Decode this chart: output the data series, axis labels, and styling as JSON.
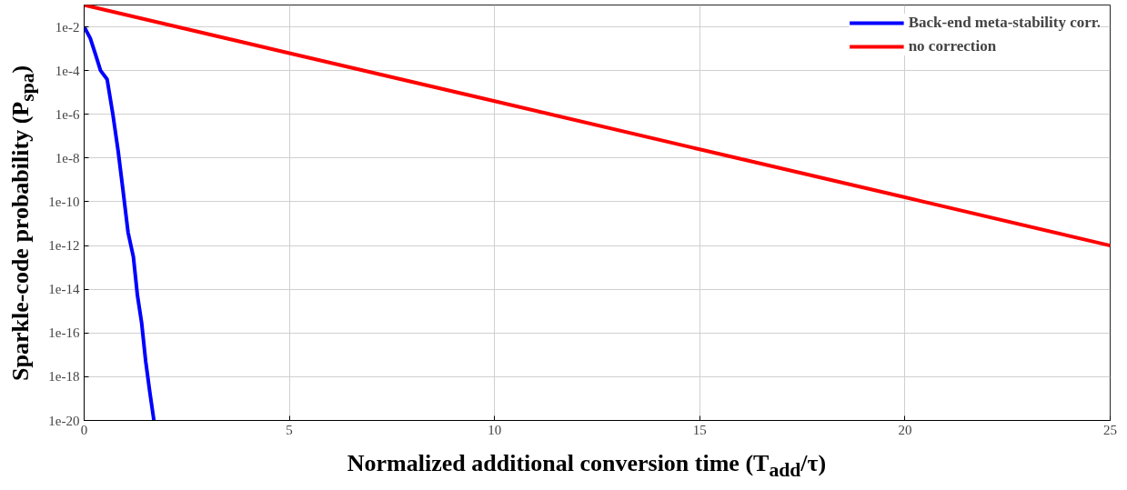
{
  "chart_data": {
    "type": "line",
    "xlabel": "Normalized additional conversion time (T$_{add}$/τ)",
    "ylabel": "Sparkle-code probability (P$_{spa}$)",
    "log": "y",
    "grid": true,
    "legend": "top right",
    "line_style": "solid",
    "marker": "none",
    "xlim": [
      0,
      25
    ],
    "ylim": [
      1e-20,
      0.1
    ],
    "xticks": [
      0,
      5,
      10,
      15,
      20,
      25
    ],
    "yticks": [
      {
        "value": 1e-20,
        "label": "1e-20"
      },
      {
        "value": 1e-18,
        "label": "1e-18"
      },
      {
        "value": 1e-16,
        "label": "1e-16"
      },
      {
        "value": 1e-14,
        "label": "1e-14"
      },
      {
        "value": 1e-12,
        "label": "1e-12"
      },
      {
        "value": 1e-10,
        "label": "1e-10"
      },
      {
        "value": 1e-08,
        "label": "1e-8"
      },
      {
        "value": 1e-06,
        "label": "1e-6"
      },
      {
        "value": 0.0001,
        "label": "1e-4"
      },
      {
        "value": 0.01,
        "label": "1e-2"
      }
    ],
    "series": [
      {
        "name": "Back-end meta-stability corr.",
        "color": "#0000ff",
        "x": [
          0,
          0.15,
          0.27,
          0.4,
          0.56,
          0.7,
          0.83,
          0.95,
          1.07,
          1.2,
          1.3,
          1.4,
          1.5,
          1.6,
          1.7
        ],
        "values": [
          0.01,
          0.003,
          0.0006,
          0.0001,
          4e-05,
          1e-06,
          2e-08,
          3e-10,
          4e-12,
          3e-13,
          5e-15,
          3e-16,
          5e-18,
          2e-19,
          1e-20
        ]
      },
      {
        "name": "no correction",
        "color": "#ff0000",
        "x": [
          0,
          5,
          10,
          15,
          20,
          25
        ],
        "values": [
          0.1,
          0.00063,
          4e-06,
          2.5e-08,
          1.6e-10,
          1e-12
        ]
      }
    ]
  }
}
